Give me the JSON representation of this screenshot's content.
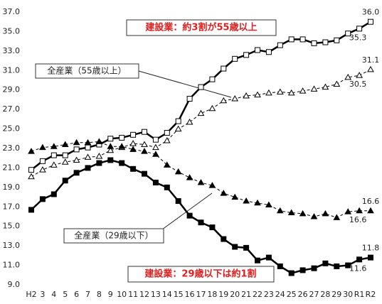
{
  "chart_data": {
    "type": "line",
    "categories": [
      "H2",
      "3",
      "4",
      "5",
      "6",
      "7",
      "8",
      "9",
      "10",
      "11",
      "12",
      "13",
      "14",
      "15",
      "16",
      "17",
      "18",
      "19",
      "20",
      "21",
      "22",
      "23",
      "24",
      "25",
      "26",
      "27",
      "28",
      "29",
      "30",
      "R1",
      "R2"
    ],
    "ylim": [
      9,
      37
    ],
    "yticks": [
      {
        "value": 9,
        "label": "9.0"
      },
      {
        "value": 11,
        "label": "11.0"
      },
      {
        "value": 13,
        "label": "13.0"
      },
      {
        "value": 15,
        "label": "15.0"
      },
      {
        "value": 17,
        "label": "17.0"
      },
      {
        "value": 19,
        "label": "19.0"
      },
      {
        "value": 21,
        "label": "21.0"
      },
      {
        "value": 23,
        "label": "23.0"
      },
      {
        "value": 25,
        "label": "25.0"
      },
      {
        "value": 27,
        "label": "27.0"
      },
      {
        "value": 29,
        "label": "29.0"
      },
      {
        "value": 31,
        "label": "31.0"
      },
      {
        "value": 33,
        "label": "33.0"
      },
      {
        "value": 35,
        "label": "35.0"
      },
      {
        "value": 37,
        "label": "37.0"
      }
    ],
    "grid": false,
    "series": [
      {
        "color": "#000000",
        "marker": "square",
        "filled": false,
        "dashed": false,
        "values": [
          20.8,
          21.7,
          22.3,
          22.3,
          22.9,
          23.1,
          23.4,
          24.0,
          24.1,
          24.4,
          24.7,
          23.9,
          24.6,
          25.8,
          28.1,
          29.3,
          30.1,
          31.2,
          32.2,
          32.6,
          33.1,
          32.9,
          33.6,
          34.2,
          34.2,
          33.8,
          33.9,
          34.1,
          34.8,
          35.3,
          36.0
        ],
        "value_labels": [
          null,
          null,
          null,
          null,
          null,
          null,
          null,
          null,
          null,
          null,
          null,
          null,
          null,
          null,
          null,
          null,
          null,
          null,
          null,
          null,
          null,
          null,
          null,
          null,
          null,
          null,
          null,
          null,
          null,
          "35.3",
          "36.0"
        ]
      },
      {
        "color": "#000000",
        "marker": "triangle",
        "filled": false,
        "dashed": true,
        "values": [
          20.1,
          20.8,
          21.3,
          21.6,
          21.8,
          22.1,
          22.2,
          22.8,
          23.1,
          23.5,
          23.4,
          23.1,
          23.8,
          25.0,
          25.7,
          26.6,
          27.1,
          27.9,
          28.1,
          28.4,
          28.5,
          28.7,
          28.8,
          28.7,
          28.9,
          29.1,
          29.3,
          29.6,
          30.3,
          30.5,
          31.1
        ],
        "value_labels": [
          null,
          null,
          null,
          null,
          null,
          null,
          null,
          null,
          null,
          null,
          null,
          null,
          null,
          null,
          null,
          null,
          null,
          null,
          null,
          null,
          null,
          null,
          null,
          null,
          null,
          null,
          null,
          null,
          null,
          "30.5",
          "31.1"
        ]
      },
      {
        "color": "#000000",
        "marker": "triangle",
        "filled": true,
        "dashed": true,
        "values": [
          22.7,
          23.1,
          23.2,
          23.4,
          23.6,
          23.6,
          23.7,
          23.2,
          23.2,
          22.9,
          22.7,
          22.4,
          21.3,
          20.6,
          20.0,
          19.5,
          19.2,
          18.4,
          18.0,
          17.6,
          17.4,
          17.2,
          16.6,
          16.4,
          16.3,
          16.0,
          16.3,
          15.9,
          16.5,
          16.6,
          16.6
        ],
        "value_labels": [
          null,
          null,
          null,
          null,
          null,
          null,
          null,
          null,
          null,
          null,
          null,
          null,
          null,
          null,
          null,
          null,
          null,
          null,
          null,
          null,
          null,
          null,
          null,
          null,
          null,
          null,
          null,
          null,
          null,
          "16.6",
          "16.6"
        ]
      },
      {
        "color": "#000000",
        "marker": "square",
        "filled": true,
        "dashed": false,
        "values": [
          16.7,
          17.8,
          18.3,
          19.7,
          20.5,
          21.0,
          21.5,
          21.8,
          21.5,
          20.9,
          20.4,
          19.5,
          19.0,
          17.6,
          16.1,
          15.4,
          14.9,
          13.7,
          12.9,
          12.8,
          11.5,
          11.8,
          10.9,
          10.2,
          10.5,
          10.7,
          11.2,
          10.9,
          11.0,
          11.6,
          11.8
        ],
        "value_labels": [
          null,
          null,
          null,
          null,
          null,
          null,
          null,
          null,
          null,
          null,
          null,
          null,
          null,
          null,
          null,
          null,
          null,
          null,
          null,
          null,
          null,
          null,
          null,
          null,
          null,
          null,
          null,
          null,
          null,
          "11.6",
          "11.8"
        ]
      }
    ],
    "annotations": [
      {
        "text": "建設業：約3割が55歳以上",
        "color": "#e02020"
      },
      {
        "text": "全産業（55歳以上）",
        "color": "#222222"
      },
      {
        "text": "全産業（29歳以下）",
        "color": "#222222"
      },
      {
        "text": "建設業：29歳以下は約1割",
        "color": "#e02020"
      }
    ]
  }
}
